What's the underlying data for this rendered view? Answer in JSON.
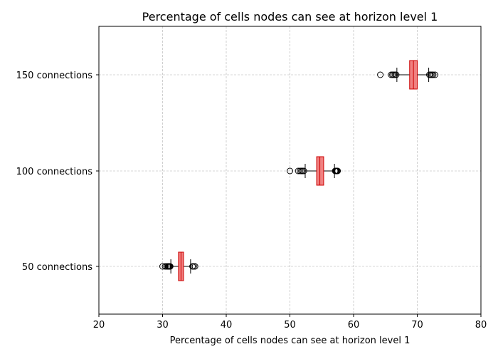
{
  "chart_data": {
    "type": "boxplot",
    "orientation": "horizontal",
    "title": "Percentage of cells nodes can see at horizon level 1",
    "xlabel": "Percentage of cells nodes can see at horizon level 1",
    "ylabel": "",
    "xlim": [
      20,
      80
    ],
    "xticks": [
      20,
      30,
      40,
      50,
      60,
      70,
      80
    ],
    "grid": true,
    "categories": [
      "50 connections",
      "100 connections",
      "150 connections"
    ],
    "boxes": [
      {
        "label": "50 connections",
        "q1": 32.5,
        "median": 32.9,
        "q3": 33.3,
        "whisker_low": 31.3,
        "whisker_high": 34.4,
        "outliers_low": [
          30.0,
          30.4,
          30.6,
          30.8,
          30.9,
          31.0,
          31.1,
          31.2
        ],
        "outliers_high": [
          34.7,
          34.9,
          35.1
        ]
      },
      {
        "label": "100 connections",
        "q1": 54.2,
        "median": 54.7,
        "q3": 55.3,
        "whisker_low": 52.4,
        "whisker_high": 57.0,
        "outliers_low": [
          50.0,
          51.3,
          51.6,
          51.8,
          52.0,
          52.2
        ],
        "outliers_high": [
          57.1,
          57.2,
          57.3,
          57.4,
          57.5
        ]
      },
      {
        "label": "150 connections",
        "q1": 68.8,
        "median": 69.4,
        "q3": 70.0,
        "whisker_low": 66.8,
        "whisker_high": 71.8,
        "outliers_low": [
          64.2,
          65.9,
          66.1,
          66.3,
          66.5,
          66.7
        ],
        "outliers_high": [
          71.9,
          72.1,
          72.3,
          72.5,
          72.8
        ]
      }
    ],
    "colors": {
      "box_fill": "#f08080",
      "box_edge": "#cc0000",
      "median": "#cc0000",
      "whisker": "#000000",
      "outlier_edge": "#000000",
      "grid": "#b0b0b0",
      "axes": "#000000"
    }
  }
}
